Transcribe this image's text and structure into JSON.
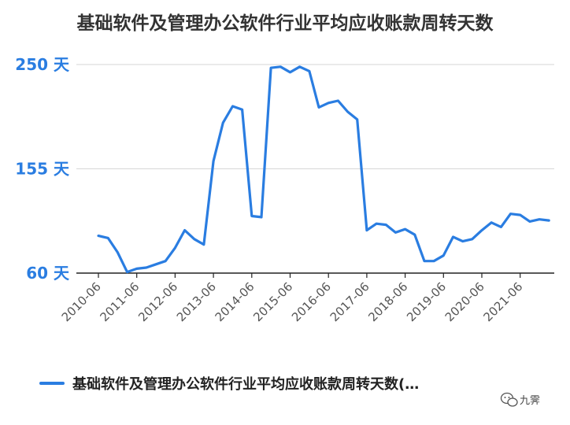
{
  "chart_data": {
    "type": "line",
    "title": "基础软件及管理办公软件行业平均应收账款周转天数",
    "y_ticks": [
      {
        "value": 250,
        "label": "250",
        "unit": "天"
      },
      {
        "value": 155,
        "label": "155",
        "unit": "天"
      },
      {
        "value": 60,
        "label": "60",
        "unit": "天"
      }
    ],
    "ylim": [
      60,
      250
    ],
    "x_tick_labels": [
      "2010-06",
      "2011-06",
      "2012-06",
      "2013-06",
      "2014-06",
      "2015-06",
      "2016-06",
      "2017-06",
      "2018-06",
      "2019-06",
      "2020-06",
      "2021-06"
    ],
    "grid": true,
    "legend_position": "bottom",
    "series": [
      {
        "name": "基础软件及管理办公软件行业平均应收账款周转天数(…",
        "color": "#2a7de1",
        "x": [
          "2010-06",
          "2010-09",
          "2010-12",
          "2011-03",
          "2011-06",
          "2011-09",
          "2011-12",
          "2012-03",
          "2012-06",
          "2012-09",
          "2012-12",
          "2013-03",
          "2013-06",
          "2013-09",
          "2013-12",
          "2014-03",
          "2014-06",
          "2014-09",
          "2014-12",
          "2015-03",
          "2015-06",
          "2015-09",
          "2015-12",
          "2016-03",
          "2016-06",
          "2016-09",
          "2016-12",
          "2017-03",
          "2017-06",
          "2017-09",
          "2017-12",
          "2018-03",
          "2018-06",
          "2018-09",
          "2018-12",
          "2019-03",
          "2019-06",
          "2019-09",
          "2019-12",
          "2020-03",
          "2020-06",
          "2020-09",
          "2020-12",
          "2021-03",
          "2021-06",
          "2021-09",
          "2021-12",
          "2022-03"
        ],
        "values": [
          94,
          92,
          79,
          61,
          64,
          65,
          68,
          71,
          83,
          99,
          91,
          86,
          162,
          197,
          212,
          209,
          112,
          111,
          247,
          248,
          243,
          248,
          244,
          211,
          215,
          217,
          207,
          200,
          99,
          105,
          104,
          97,
          100,
          95,
          71,
          71,
          76,
          93,
          89,
          91,
          99,
          106,
          102,
          114,
          113,
          107,
          109,
          108
        ]
      }
    ]
  },
  "watermark": {
    "icon": "wechat-icon",
    "text": "九霁"
  }
}
